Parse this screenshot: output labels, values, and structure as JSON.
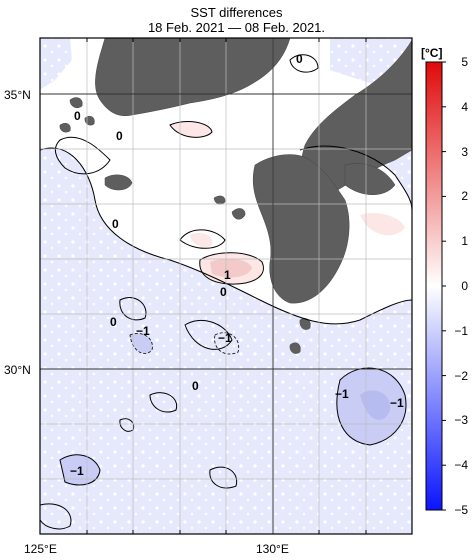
{
  "title": "SST differences",
  "subtitle": "18 Feb. 2021 — 08 Feb. 2021.",
  "axes": {
    "lat_labels": [
      "35°N",
      "30°N"
    ],
    "lon_labels": [
      "125°E",
      "130°E"
    ]
  },
  "colorbar": {
    "unit": "[°C]",
    "ticks": [
      "5",
      "4",
      "3",
      "2",
      "1",
      "0",
      "−1",
      "−2",
      "−3",
      "−4",
      "−5"
    ],
    "min": -5,
    "max": 5,
    "colors": {
      "neg_strong": "#0a14ff",
      "neg_weak": "#e6e8fc",
      "neutral": "#ffffff",
      "pos_weak": "#fce6e6",
      "pos_strong": "#e00a0a"
    }
  },
  "map": {
    "land_color": "#5e5e5e",
    "contour_labels": [
      {
        "text": "0"
      },
      {
        "text": "0"
      },
      {
        "text": "0"
      },
      {
        "text": "0"
      },
      {
        "text": "1"
      },
      {
        "text": "0"
      },
      {
        "text": "0"
      },
      {
        "text": "−1"
      },
      {
        "text": "−1"
      },
      {
        "text": "0"
      },
      {
        "text": "−1"
      },
      {
        "text": "−1"
      },
      {
        "text": "−1"
      }
    ]
  }
}
